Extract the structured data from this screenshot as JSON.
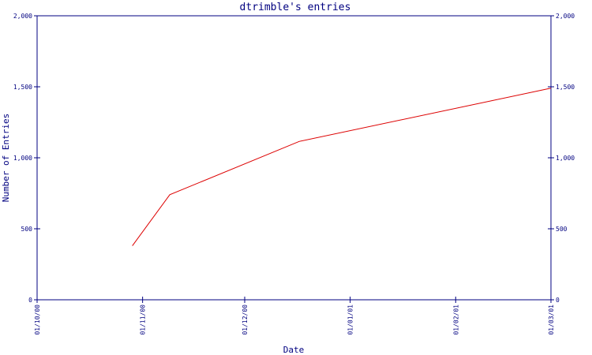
{
  "colors": {
    "axis": "#000080",
    "text": "#000080",
    "series": "#dd0000",
    "background": "#ffffff"
  },
  "chart_data": {
    "type": "line",
    "title": "dtrimble's entries",
    "xlabel": "Date",
    "ylabel": "Number of Entries",
    "x_axis_kind": "date",
    "xlim": [
      "2000-10-01",
      "2001-03-01"
    ],
    "ylim": [
      0,
      2000
    ],
    "grid": false,
    "y_ticks": [
      {
        "value": 0,
        "label": "0"
      },
      {
        "value": 500,
        "label": "500"
      },
      {
        "value": 1000,
        "label": "1,000"
      },
      {
        "value": 1500,
        "label": "1,500"
      },
      {
        "value": 2000,
        "label": "2,000"
      }
    ],
    "x_ticks": [
      {
        "value": "2000-10-01",
        "label": "01/10/00"
      },
      {
        "value": "2000-11-01",
        "label": "01/11/00"
      },
      {
        "value": "2000-12-01",
        "label": "01/12/00"
      },
      {
        "value": "2001-01-01",
        "label": "01/01/01"
      },
      {
        "value": "2001-02-01",
        "label": "01/02/01"
      },
      {
        "value": "2001-03-01",
        "label": "01/03/01"
      }
    ],
    "series": [
      {
        "points": [
          {
            "x": "2000-10-29",
            "y": 380
          },
          {
            "x": "2000-11-09",
            "y": 740
          },
          {
            "x": "2000-12-17",
            "y": 1115
          },
          {
            "x": "2001-03-01",
            "y": 1490
          }
        ]
      }
    ]
  }
}
